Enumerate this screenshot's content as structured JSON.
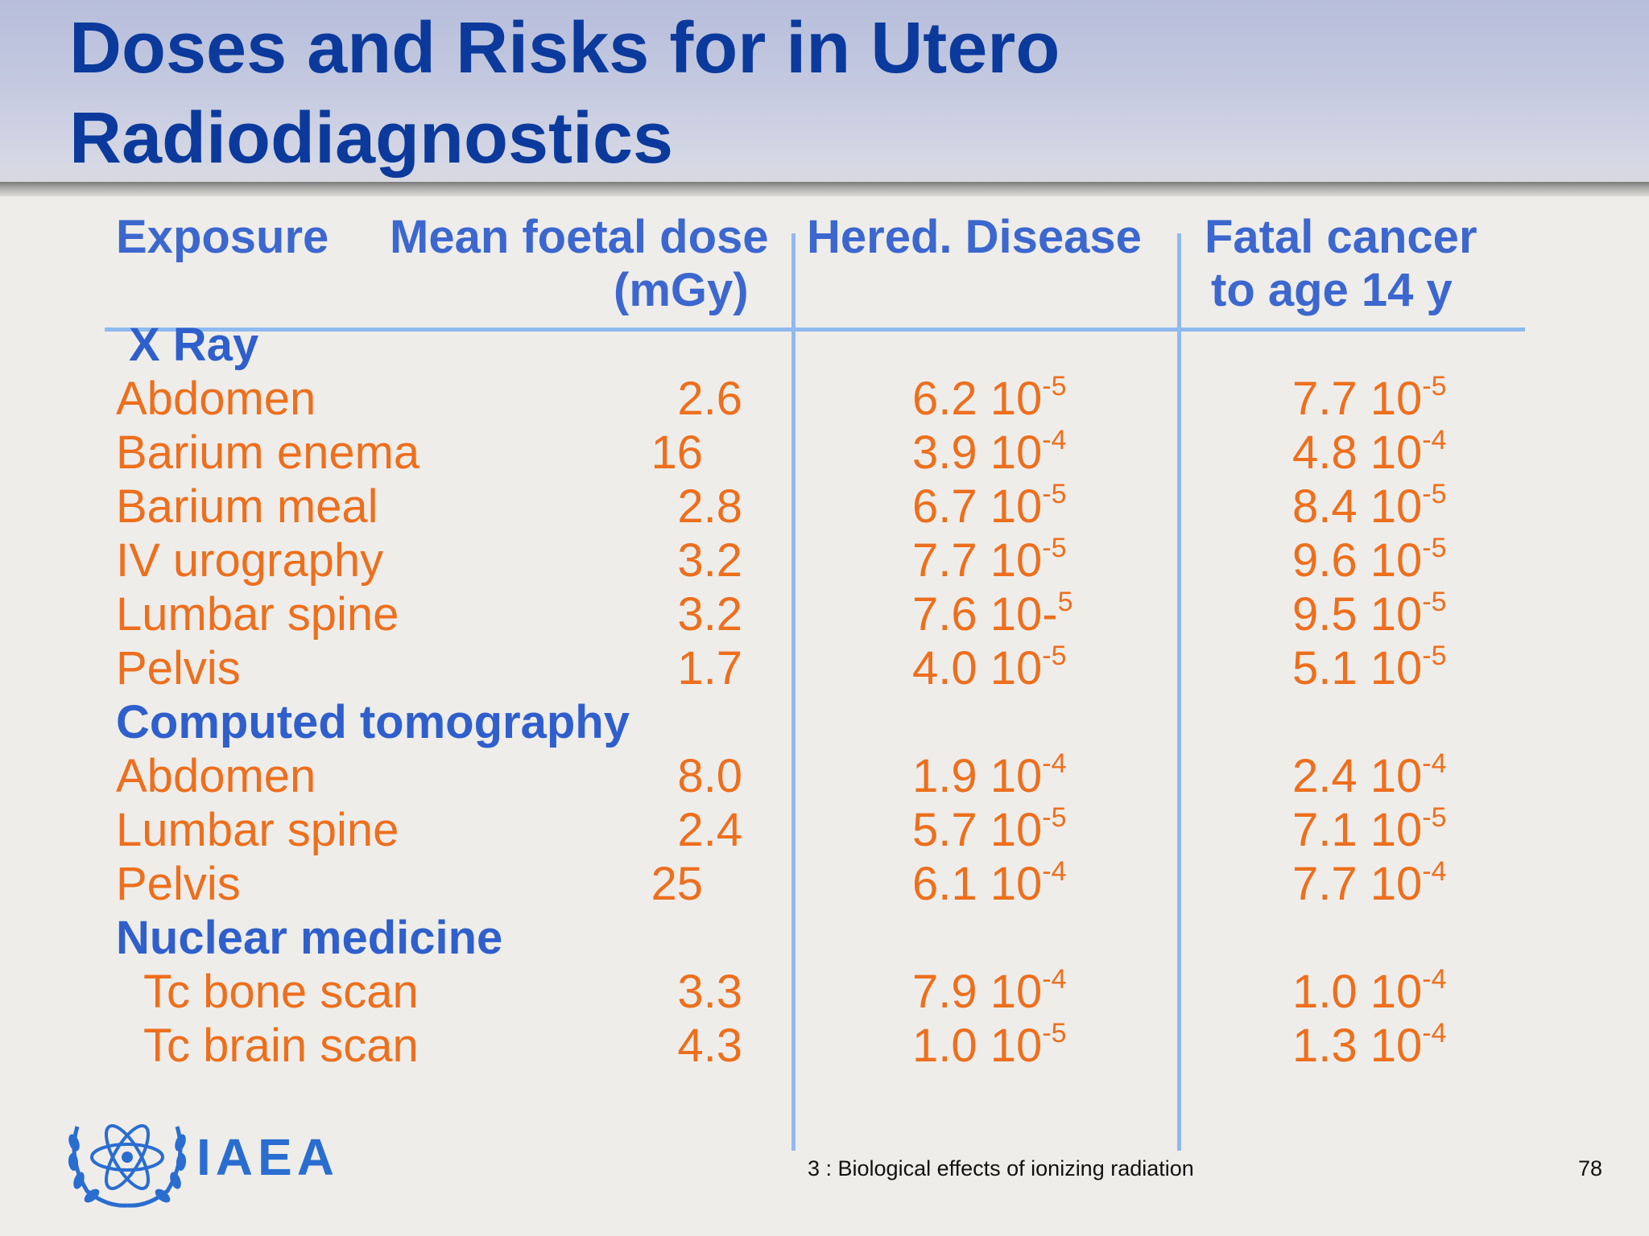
{
  "title": {
    "line1": "Doses and Risks for in Utero",
    "line2": "Radiodiagnostics"
  },
  "table": {
    "headers": {
      "exposure": "Exposure",
      "dose_line1": "Mean foetal dose",
      "dose_line2": "(mGy)",
      "hered": "Hered. Disease",
      "cancer_line1": "Fatal cancer",
      "cancer_line2": "to age 14 y"
    },
    "sections": [
      {
        "name": "X Ray",
        "rows": [
          {
            "label": "Abdomen",
            "dose": "2.6",
            "hered_base": "6.2 10",
            "hered_exp": "-5",
            "cancer_base": "7.7 10",
            "cancer_exp": "-5"
          },
          {
            "label": "Barium enema",
            "dose": "16",
            "hered_base": "3.9 10",
            "hered_exp": "-4",
            "cancer_base": "4.8 10",
            "cancer_exp": "-4"
          },
          {
            "label": "Barium meal",
            "dose": "2.8",
            "hered_base": "6.7 10",
            "hered_exp": "-5",
            "cancer_base": "8.4 10",
            "cancer_exp": "-5"
          },
          {
            "label": "IV urography",
            "dose": "3.2",
            "hered_base": "7.7 10",
            "hered_exp": "-5",
            "cancer_base": "9.6 10",
            "cancer_exp": "-5"
          },
          {
            "label": "Lumbar spine",
            "dose": "3.2",
            "hered_base": "7.6 10-",
            "hered_exp": "5",
            "cancer_base": "9.5 10",
            "cancer_exp": "-5"
          },
          {
            "label": "Pelvis",
            "dose": "1.7",
            "hered_base": "4.0 10",
            "hered_exp": "-5",
            "cancer_base": "5.1 10",
            "cancer_exp": "-5"
          }
        ]
      },
      {
        "name": "Computed tomography",
        "rows": [
          {
            "label": "Abdomen",
            "dose": "8.0",
            "hered_base": "1.9 10",
            "hered_exp": "-4",
            "cancer_base": "2.4 10",
            "cancer_exp": "-4"
          },
          {
            "label": "Lumbar spine",
            "dose": "2.4",
            "hered_base": "5.7 10",
            "hered_exp": "-5",
            "cancer_base": "7.1 10",
            "cancer_exp": "-5"
          },
          {
            "label": "Pelvis",
            "dose": "25",
            "hered_base": "6.1 10",
            "hered_exp": "-4",
            "cancer_base": "7.7 10",
            "cancer_exp": "-4"
          }
        ]
      },
      {
        "name": "Nuclear medicine",
        "rows": [
          {
            "label": "Tc bone scan",
            "dose": "3.3",
            "hered_base": "7.9 10",
            "hered_exp": "-4",
            "cancer_base": "1.0 10",
            "cancer_exp": "-4"
          },
          {
            "label": "Tc brain scan",
            "dose": "4.3",
            "hered_base": "1.0 10",
            "hered_exp": "-5",
            "cancer_base": "1.3 10",
            "cancer_exp": "-4"
          }
        ]
      }
    ]
  },
  "footer": {
    "logo_text": "IAEA",
    "logo_icon": "un-emblem-icon",
    "caption": "3 : Biological effects of ionizing radiation",
    "page_number": "78"
  },
  "colors": {
    "title": "#0b3a9c",
    "header": "#3c67cf",
    "row_text": "#ed6f1d",
    "rule": "#8fb9ef"
  }
}
